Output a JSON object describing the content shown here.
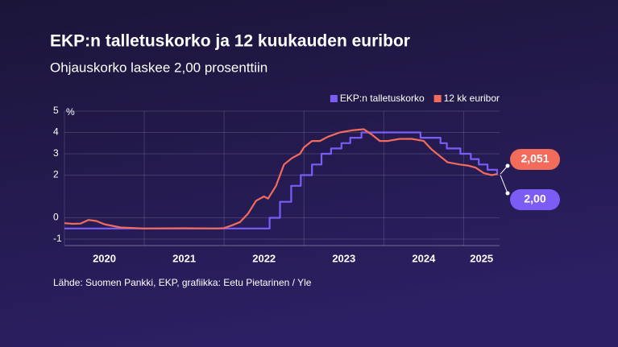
{
  "chart_data": {
    "type": "line",
    "title": "EKP:n talletuskorko ja 12 kuukauden euribor",
    "subtitle": "Ohjauskorko laskee 2,00 prosenttiin",
    "source": "Lähde: Suomen Pankki, EKP, grafiikka: Eetu Pietarinen / Yle",
    "y_unit": "%",
    "xlim": [
      2020.0,
      2025.45
    ],
    "xticks": [
      2020,
      2021,
      2022,
      2023,
      2024,
      2025
    ],
    "ylim": [
      -1.3,
      5
    ],
    "yticks": [
      5,
      4,
      3,
      2,
      0,
      -1
    ],
    "grid": true,
    "legend": "top-right",
    "series": [
      {
        "name": "EKP:n talletuskorko",
        "color": "#7b5cf5",
        "end_label": "2,00",
        "x": [
          2020.0,
          2022.57,
          2022.57,
          2022.7,
          2022.7,
          2022.84,
          2022.84,
          2022.96,
          2022.96,
          2023.1,
          2023.1,
          2023.22,
          2023.22,
          2023.34,
          2023.34,
          2023.47,
          2023.47,
          2023.58,
          2023.58,
          2023.72,
          2023.72,
          2024.46,
          2024.46,
          2024.71,
          2024.71,
          2024.79,
          2024.79,
          2024.96,
          2024.96,
          2025.09,
          2025.09,
          2025.19,
          2025.19,
          2025.3,
          2025.3,
          2025.42,
          2025.42
        ],
        "values": [
          -0.5,
          -0.5,
          0,
          0,
          0.75,
          0.75,
          1.5,
          1.5,
          2.0,
          2.0,
          2.5,
          2.5,
          3.0,
          3.0,
          3.25,
          3.25,
          3.5,
          3.5,
          3.75,
          3.75,
          4.0,
          4.0,
          3.75,
          3.75,
          3.5,
          3.5,
          3.25,
          3.25,
          3.0,
          3.0,
          2.75,
          2.75,
          2.5,
          2.5,
          2.25,
          2.25,
          2.0
        ]
      },
      {
        "name": "12 kk euribor",
        "color": "#f26b5b",
        "end_label": "2,051",
        "x": [
          2020.0,
          2020.1,
          2020.2,
          2020.3,
          2020.4,
          2020.5,
          2020.7,
          2021.0,
          2021.5,
          2021.9,
          2022.0,
          2022.1,
          2022.2,
          2022.3,
          2022.4,
          2022.5,
          2022.55,
          2022.65,
          2022.75,
          2022.85,
          2022.95,
          2023.0,
          2023.1,
          2023.2,
          2023.3,
          2023.45,
          2023.6,
          2023.75,
          2023.85,
          2023.95,
          2024.05,
          2024.2,
          2024.35,
          2024.5,
          2024.6,
          2024.7,
          2024.8,
          2024.95,
          2025.05,
          2025.15,
          2025.25,
          2025.35,
          2025.42
        ],
        "values": [
          -0.25,
          -0.28,
          -0.27,
          -0.1,
          -0.15,
          -0.3,
          -0.45,
          -0.5,
          -0.49,
          -0.5,
          -0.48,
          -0.35,
          -0.2,
          0.2,
          0.8,
          1.0,
          0.9,
          1.5,
          2.5,
          2.8,
          3.0,
          3.3,
          3.6,
          3.6,
          3.8,
          4.0,
          4.1,
          4.15,
          3.9,
          3.6,
          3.6,
          3.7,
          3.7,
          3.6,
          3.2,
          2.9,
          2.6,
          2.5,
          2.45,
          2.35,
          2.1,
          2.0,
          2.051
        ]
      }
    ]
  }
}
